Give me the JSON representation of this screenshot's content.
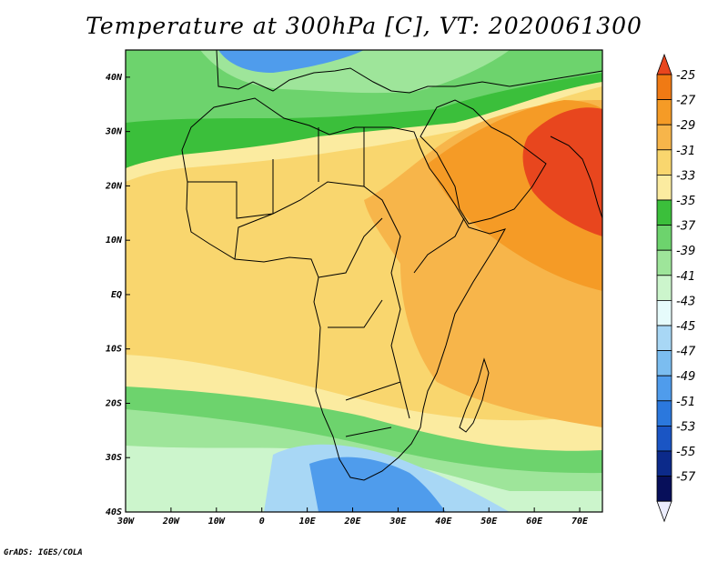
{
  "title": "Temperature at 300hPa [C], VT: 2020061300",
  "credit": "GrADS: IGES/COLA",
  "lat_ticks": [
    {
      "label": "40N",
      "lat": 40
    },
    {
      "label": "30N",
      "lat": 30
    },
    {
      "label": "20N",
      "lat": 20
    },
    {
      "label": "10N",
      "lat": 10
    },
    {
      "label": "EQ",
      "lat": 0
    },
    {
      "label": "10S",
      "lat": -10
    },
    {
      "label": "20S",
      "lat": -20
    },
    {
      "label": "30S",
      "lat": -30
    },
    {
      "label": "40S",
      "lat": -40
    }
  ],
  "lon_ticks": [
    {
      "label": "30W",
      "lon": -30
    },
    {
      "label": "20W",
      "lon": -20
    },
    {
      "label": "10W",
      "lon": -10
    },
    {
      "label": "0",
      "lon": 0
    },
    {
      "label": "10E",
      "lon": 10
    },
    {
      "label": "20E",
      "lon": 20
    },
    {
      "label": "30E",
      "lon": 30
    },
    {
      "label": "40E",
      "lon": 40
    },
    {
      "label": "50E",
      "lon": 50
    },
    {
      "label": "60E",
      "lon": 60
    },
    {
      "label": "70E",
      "lon": 70
    }
  ],
  "colorbar": {
    "labels": [
      "-25",
      "-27",
      "-29",
      "-31",
      "-33",
      "-35",
      "-37",
      "-39",
      "-41",
      "-43",
      "-45",
      "-47",
      "-49",
      "-51",
      "-53",
      "-55",
      "-57"
    ],
    "colors": [
      "#e8461e",
      "#f07a14",
      "#f59b26",
      "#f7b54a",
      "#f9d66e",
      "#fbeba0",
      "#3bbf3b",
      "#6dd36d",
      "#9ee59a",
      "#ccf5cc",
      "#e6fbfb",
      "#a8d7f5",
      "#7bbdf0",
      "#4f9cec",
      "#2b78dd",
      "#1a55c4",
      "#0c2a8a",
      "#070f5a",
      "#ecedfd"
    ]
  },
  "map_colors": {
    "hot": "#e8461e",
    "orange": "#f07a14",
    "orange_light": "#f59b26",
    "amber": "#f7b54a",
    "yellow": "#f9d66e",
    "pale_yellow": "#fbeba0",
    "green": "#3bbf3b",
    "green_light": "#6dd36d",
    "green_pale": "#9ee59a",
    "mint": "#ccf5cc",
    "cyan_pale": "#e6fbfb",
    "blue_pale": "#a8d7f5",
    "blue": "#4f9cec",
    "blue_dark": "#2b78dd"
  },
  "map_extent": {
    "lon_min": -30,
    "lon_max": 75,
    "lat_min": -40,
    "lat_max": 45
  }
}
